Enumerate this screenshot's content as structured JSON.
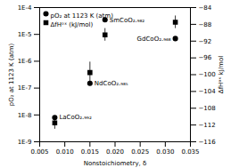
{
  "chart_data": {
    "type": "scatter",
    "xlabel": "Nonstoichiometry, δ",
    "ylabel": "pO₂ at 1123 K (atm)",
    "y2label": "ΔfHᵒˣ kJ/mol",
    "log": "y",
    "grid": false,
    "legend": "upper left",
    "xlim": [
      0.005,
      0.035
    ],
    "xticks": [
      0.005,
      {
        "value": 0.01,
        "label": "0.010"
      },
      0.015,
      {
        "value": 0.02,
        "label": "0.020"
      },
      0.025,
      {
        "value": 0.03,
        "label": "0.030"
      },
      0.035
    ],
    "ylim": [
      1e-09,
      0.0001
    ],
    "yticks": [
      {
        "value": 1e-09,
        "label": "1E-9"
      },
      {
        "value": 1e-08,
        "label": "1E-8"
      },
      {
        "value": 1e-07,
        "label": "1E-7"
      },
      {
        "value": 1e-06,
        "label": "1E-6"
      },
      {
        "value": 1e-05,
        "label": "1E-5"
      },
      {
        "value": 0.0001,
        "label": "1E-4"
      }
    ],
    "y2lim": [
      -116,
      -84
    ],
    "y2ticks": [
      -116,
      -112,
      -108,
      -104,
      -100,
      -96,
      -92,
      -88,
      -84
    ],
    "x": [
      0.008,
      0.015,
      0.018,
      0.032
    ],
    "series": [
      {
        "name": "pO₂ at 1123 K (atm)",
        "marker": "circle",
        "color": "black",
        "values": [
          8e-09,
          1.5e-07,
          3.5e-05,
          7e-06
        ]
      },
      {
        "name": "ΔfHᵒˣ (kJ/mol)",
        "axis": "y2",
        "marker": "square",
        "color": "black",
        "values": [
          -111.5,
          -99.5,
          -90.5,
          -87.5
        ],
        "errors": [
          1.5,
          2.5,
          1.5,
          1.5
        ]
      }
    ],
    "annotations": [
      {
        "text": "LaCoO₂.₉₉₂",
        "x": 0.008,
        "y": 8e-09
      },
      {
        "text": "NdCoO₂.₉₈₅",
        "x": 0.015,
        "y": 1.5e-07
      },
      {
        "text": "SmCoO₂.₉₈₂",
        "x": 0.018,
        "y": 3.5e-05
      },
      {
        "text": "GdCoO₂.₉₆₈",
        "x": 0.032,
        "y": 7e-06
      }
    ]
  }
}
